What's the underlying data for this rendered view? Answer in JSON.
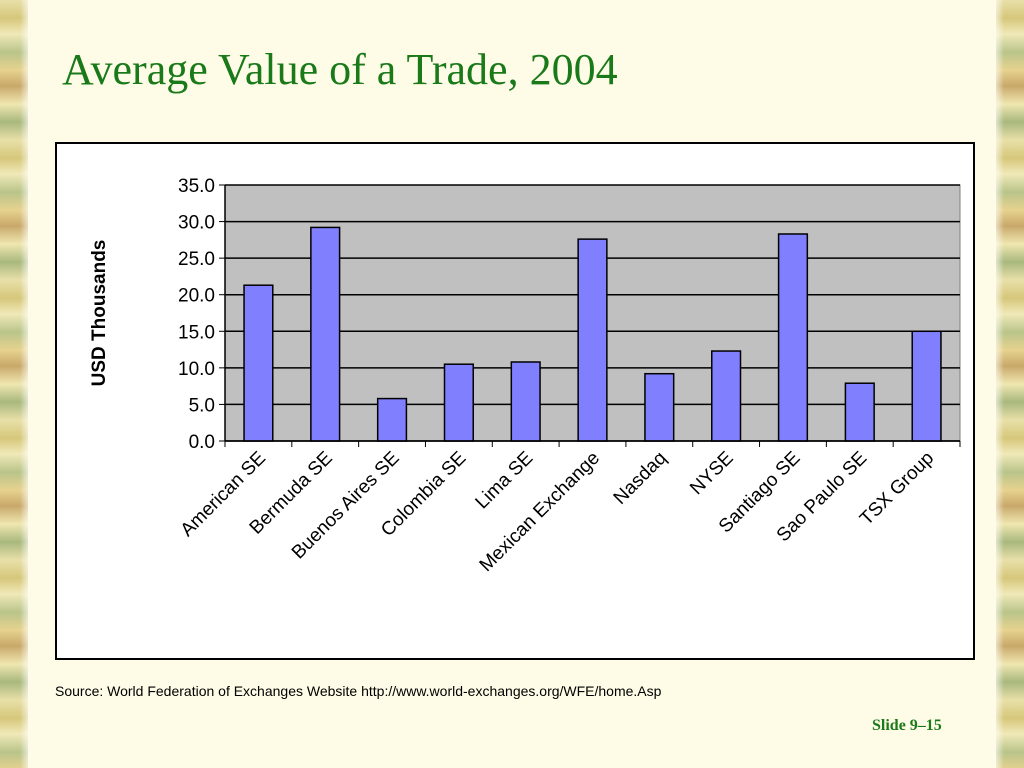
{
  "slide": {
    "title": "Average Value of a Trade, 2004",
    "source": "Source:  World Federation of Exchanges Website  http://www.world-exchanges.org/WFE/home.Asp",
    "number": "Slide 9–15"
  },
  "colors": {
    "title": "#1a7a1a",
    "bar_fill": "#8080ff",
    "plot_background": "#c0c0c0",
    "background": "#fefce6"
  },
  "chart_data": {
    "type": "bar",
    "categories": [
      "American SE",
      "Bermuda SE",
      "Buenos Aires SE",
      "Colombia SE",
      "Lima SE",
      "Mexican Exchange",
      "Nasdaq",
      "NYSE",
      "Santiago SE",
      "Sao Paulo SE",
      "TSX Group"
    ],
    "values": [
      21.3,
      29.2,
      5.8,
      10.5,
      10.8,
      27.6,
      9.2,
      12.3,
      28.3,
      7.9,
      15.0
    ],
    "ylabel": "USD Thousands",
    "xlabel": "",
    "ylim": [
      0,
      35
    ],
    "yticks": [
      "0.0",
      "5.0",
      "10.0",
      "15.0",
      "20.0",
      "25.0",
      "30.0",
      "35.0"
    ],
    "grid": true,
    "legend": "none"
  }
}
